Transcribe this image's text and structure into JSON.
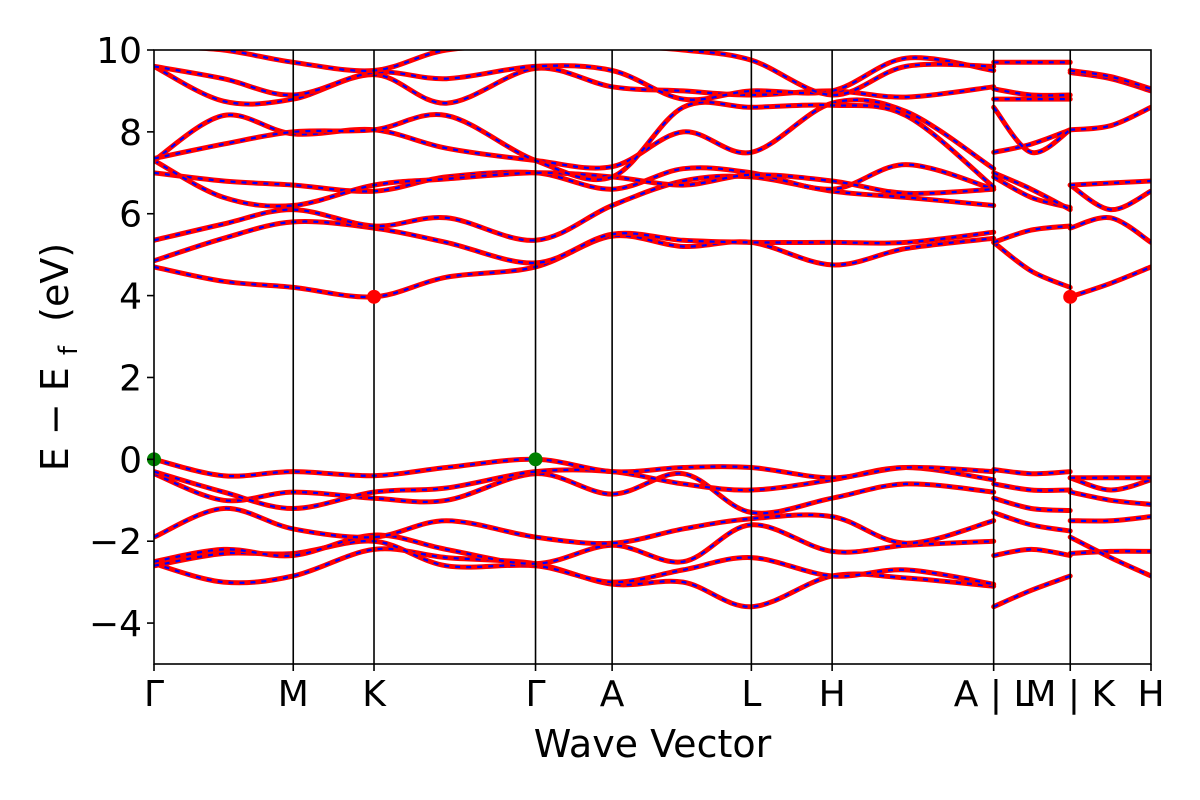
{
  "chart_data": {
    "type": "line",
    "title": "",
    "xlabel": "Wave Vector",
    "ylabel": "E − E",
    "ylabel_sub": "f",
    "ylabel_unit": "(eV)",
    "ylim": [
      -5,
      10
    ],
    "yticks": [
      {
        "value": 10,
        "label": "10"
      },
      {
        "value": 8,
        "label": "8"
      },
      {
        "value": 6,
        "label": "6"
      },
      {
        "value": 4,
        "label": "4"
      },
      {
        "value": 2,
        "label": "2"
      },
      {
        "value": 0,
        "label": "0"
      },
      {
        "value": -2,
        "label": "−2"
      },
      {
        "value": -4,
        "label": "−4"
      }
    ],
    "kpoints": [
      {
        "label": "Γ",
        "k": 0
      },
      {
        "label": "M",
        "k": 1.0
      },
      {
        "label": "K",
        "k": 1.58
      },
      {
        "label": "Γ",
        "k": 2.74
      },
      {
        "label": "A",
        "k": 3.29
      },
      {
        "label": "L",
        "k": 4.29
      },
      {
        "label": "H",
        "k": 4.87
      },
      {
        "label": "A | L",
        "k": 6.03
      },
      {
        "label": "M | K",
        "k": 6.58
      },
      {
        "label": "H",
        "k": 7.16
      }
    ],
    "k_max": 7.16,
    "series_colors": {
      "band": "#ff0000",
      "overlay": "#0000ff"
    },
    "markers": [
      {
        "name": "vbm",
        "k": 0,
        "E": 0.0,
        "color": "#008000"
      },
      {
        "name": "vbm",
        "k": 2.74,
        "E": 0.0,
        "color": "#008000"
      },
      {
        "name": "cbm",
        "k": 1.58,
        "E": 3.97,
        "color": "#ff0000"
      },
      {
        "name": "cbm",
        "k": 6.58,
        "E": 3.97,
        "color": "#ff0000"
      }
    ],
    "series": [
      {
        "segment": [
          0,
          6.03
        ],
        "k": [
          0,
          0.5,
          1.0,
          1.58,
          2.1,
          2.74,
          3.29,
          3.8,
          4.29,
          4.87,
          5.4,
          6.03
        ],
        "E": [
          -2.55,
          -3.0,
          -2.85,
          -2.2,
          -2.4,
          -2.55,
          -3.05,
          -3.0,
          -3.6,
          -2.85,
          -2.9,
          -3.1
        ]
      },
      {
        "segment": [
          0,
          6.03
        ],
        "k": [
          0,
          0.5,
          1.0,
          1.58,
          2.1,
          2.74,
          3.29,
          3.8,
          4.29,
          4.87,
          5.4,
          6.03
        ],
        "E": [
          -2.6,
          -2.3,
          -2.3,
          -2.0,
          -2.6,
          -2.6,
          -3.0,
          -2.7,
          -2.4,
          -2.85,
          -2.7,
          -3.05
        ]
      },
      {
        "segment": [
          0,
          6.03
        ],
        "k": [
          0,
          0.5,
          1.0,
          1.58,
          2.1,
          2.74,
          3.29,
          3.8,
          4.29,
          4.87,
          5.4,
          6.03
        ],
        "E": [
          -2.5,
          -2.2,
          -2.35,
          -1.85,
          -2.2,
          -2.55,
          -2.1,
          -2.5,
          -1.6,
          -2.25,
          -2.1,
          -2.0
        ]
      },
      {
        "segment": [
          0,
          6.03
        ],
        "k": [
          0,
          0.5,
          1.0,
          1.58,
          2.1,
          2.74,
          3.29,
          3.8,
          4.29,
          4.87,
          5.4,
          6.03
        ],
        "E": [
          -1.9,
          -1.2,
          -1.7,
          -1.9,
          -1.5,
          -1.9,
          -2.05,
          -1.7,
          -1.45,
          -1.4,
          -2.05,
          -1.5
        ]
      },
      {
        "segment": [
          0,
          6.03
        ],
        "k": [
          0,
          0.5,
          1.0,
          1.58,
          2.1,
          2.74,
          3.29,
          3.8,
          4.29,
          4.87,
          5.4,
          6.03
        ],
        "E": [
          -0.35,
          -1.0,
          -0.8,
          -0.95,
          -1.0,
          -0.35,
          -0.85,
          -0.35,
          -1.3,
          -0.95,
          -0.6,
          -0.8
        ]
      },
      {
        "segment": [
          0,
          6.03
        ],
        "k": [
          0,
          0.5,
          1.0,
          1.58,
          2.1,
          2.74,
          3.29,
          3.8,
          4.29,
          4.87,
          5.4,
          6.03
        ],
        "E": [
          -0.3,
          -0.8,
          -1.2,
          -0.8,
          -0.7,
          -0.3,
          -0.3,
          -0.6,
          -0.75,
          -0.5,
          -0.2,
          -0.5
        ]
      },
      {
        "segment": [
          0,
          6.03
        ],
        "k": [
          0,
          0.5,
          1.0,
          1.58,
          2.1,
          2.74,
          3.29,
          3.8,
          4.29,
          4.87,
          5.4,
          6.03
        ],
        "E": [
          0.0,
          -0.4,
          -0.3,
          -0.4,
          -0.2,
          0.0,
          -0.3,
          -0.2,
          -0.2,
          -0.45,
          -0.2,
          -0.3
        ]
      },
      {
        "segment": [
          0,
          6.03
        ],
        "k": [
          0,
          0.5,
          1.0,
          1.58,
          2.1,
          2.74,
          3.29,
          3.8,
          4.29,
          4.87,
          5.4,
          6.03
        ],
        "E": [
          4.7,
          4.35,
          4.2,
          3.97,
          4.45,
          4.7,
          5.45,
          5.2,
          5.3,
          4.75,
          5.15,
          5.4
        ]
      },
      {
        "segment": [
          0,
          6.03
        ],
        "k": [
          0,
          0.5,
          1.0,
          1.58,
          2.1,
          2.74,
          3.29,
          3.8,
          4.29,
          4.87,
          5.4,
          6.03
        ],
        "E": [
          4.85,
          5.4,
          5.8,
          5.65,
          5.3,
          4.8,
          5.5,
          5.35,
          5.3,
          5.3,
          5.3,
          5.55
        ]
      },
      {
        "segment": [
          0,
          6.03
        ],
        "k": [
          0,
          0.5,
          1.0,
          1.58,
          2.1,
          2.74,
          3.29,
          3.8,
          4.29,
          4.87,
          5.4,
          6.03
        ],
        "E": [
          5.35,
          5.75,
          6.1,
          5.7,
          5.9,
          5.35,
          6.2,
          6.8,
          6.9,
          6.55,
          6.4,
          6.2
        ]
      },
      {
        "segment": [
          0,
          6.03
        ],
        "k": [
          0,
          0.5,
          1.0,
          1.58,
          2.1,
          2.74,
          3.29,
          3.8,
          4.29,
          4.87,
          5.4,
          6.03
        ],
        "E": [
          7.0,
          6.8,
          6.7,
          6.55,
          6.9,
          7.0,
          6.6,
          7.1,
          7.0,
          6.6,
          7.2,
          6.6
        ]
      },
      {
        "segment": [
          0,
          6.03
        ],
        "k": [
          0,
          0.5,
          1.0,
          1.58,
          2.1,
          2.74,
          3.29,
          3.8,
          4.29,
          4.87,
          5.4,
          6.03
        ],
        "E": [
          7.3,
          6.4,
          6.2,
          6.7,
          6.85,
          7.0,
          6.9,
          6.7,
          6.95,
          6.8,
          6.5,
          6.6
        ]
      },
      {
        "segment": [
          0,
          6.03
        ],
        "k": [
          0,
          0.5,
          1.0,
          1.58,
          2.1,
          2.74,
          3.29,
          3.8,
          4.29,
          4.87,
          5.4,
          6.03
        ],
        "E": [
          7.3,
          8.4,
          7.95,
          8.05,
          7.6,
          7.3,
          7.15,
          8.0,
          7.5,
          8.7,
          8.5,
          7.1
        ]
      },
      {
        "segment": [
          0,
          6.03
        ],
        "k": [
          0,
          0.5,
          1.0,
          1.58,
          2.1,
          2.74,
          3.29,
          3.8,
          4.29,
          4.87,
          5.4,
          6.03
        ],
        "E": [
          7.35,
          7.7,
          8.0,
          8.05,
          8.4,
          7.3,
          6.9,
          8.6,
          8.6,
          8.65,
          8.4,
          6.65
        ]
      },
      {
        "segment": [
          0,
          6.03
        ],
        "k": [
          0,
          0.5,
          1.0,
          1.58,
          2.1,
          2.74,
          3.29,
          3.8,
          4.29,
          4.87,
          5.4,
          6.03
        ],
        "E": [
          9.6,
          8.75,
          8.8,
          9.4,
          8.7,
          9.55,
          9.1,
          9.0,
          8.9,
          9.0,
          8.85,
          9.1
        ]
      },
      {
        "segment": [
          0,
          6.03
        ],
        "k": [
          0,
          0.5,
          1.0,
          1.58,
          2.1,
          2.74,
          3.29,
          3.8,
          4.29,
          4.87,
          5.4,
          6.03
        ],
        "E": [
          9.6,
          9.3,
          8.9,
          9.45,
          9.3,
          9.6,
          9.5,
          8.8,
          9.0,
          9.0,
          9.8,
          9.5
        ]
      },
      {
        "segment": [
          0,
          6.03
        ],
        "k": [
          0,
          0.5,
          1.0,
          1.58,
          2.1,
          2.74,
          3.29,
          3.8,
          4.29,
          4.87,
          5.4,
          6.03
        ],
        "E": [
          10.1,
          10.0,
          9.7,
          9.5,
          10.0,
          10.1,
          10.1,
          10.0,
          9.75,
          8.9,
          9.6,
          9.6
        ]
      },
      {
        "segment": [
          6.03,
          6.58
        ],
        "k": [
          6.03,
          6.3,
          6.58
        ],
        "E": [
          -3.6,
          -3.2,
          -2.85
        ]
      },
      {
        "segment": [
          6.03,
          6.58
        ],
        "k": [
          6.03,
          6.3,
          6.58
        ],
        "E": [
          -2.35,
          -2.2,
          -2.35
        ]
      },
      {
        "segment": [
          6.03,
          6.58
        ],
        "k": [
          6.03,
          6.3,
          6.58
        ],
        "E": [
          -1.3,
          -1.6,
          -1.75
        ]
      },
      {
        "segment": [
          6.03,
          6.58
        ],
        "k": [
          6.03,
          6.3,
          6.58
        ],
        "E": [
          -0.95,
          -1.2,
          -1.25
        ]
      },
      {
        "segment": [
          6.03,
          6.58
        ],
        "k": [
          6.03,
          6.3,
          6.58
        ],
        "E": [
          -0.6,
          -0.75,
          -0.75
        ]
      },
      {
        "segment": [
          6.03,
          6.58
        ],
        "k": [
          6.03,
          6.3,
          6.58
        ],
        "E": [
          -0.25,
          -0.35,
          -0.3
        ]
      },
      {
        "segment": [
          6.03,
          6.58
        ],
        "k": [
          6.03,
          6.3,
          6.58
        ],
        "E": [
          5.3,
          4.6,
          4.2
        ]
      },
      {
        "segment": [
          6.03,
          6.58
        ],
        "k": [
          6.03,
          6.3,
          6.58
        ],
        "E": [
          5.3,
          5.6,
          5.7
        ]
      },
      {
        "segment": [
          6.03,
          6.58
        ],
        "k": [
          6.03,
          6.3,
          6.58
        ],
        "E": [
          6.9,
          6.4,
          6.15
        ]
      },
      {
        "segment": [
          6.03,
          6.58
        ],
        "k": [
          6.03,
          6.3,
          6.58
        ],
        "E": [
          7.0,
          6.6,
          6.1
        ]
      },
      {
        "segment": [
          6.03,
          6.58
        ],
        "k": [
          6.03,
          6.3,
          6.58
        ],
        "E": [
          7.5,
          7.7,
          8.05
        ]
      },
      {
        "segment": [
          6.03,
          6.58
        ],
        "k": [
          6.03,
          6.3,
          6.58
        ],
        "E": [
          8.6,
          7.5,
          8.05
        ]
      },
      {
        "segment": [
          6.03,
          6.58
        ],
        "k": [
          6.03,
          6.3,
          6.58
        ],
        "E": [
          8.8,
          8.8,
          8.8
        ]
      },
      {
        "segment": [
          6.03,
          6.58
        ],
        "k": [
          6.03,
          6.3,
          6.58
        ],
        "E": [
          9.05,
          8.9,
          8.9
        ]
      },
      {
        "segment": [
          6.03,
          6.58
        ],
        "k": [
          6.03,
          6.3,
          6.58
        ],
        "E": [
          9.7,
          9.7,
          9.7
        ]
      },
      {
        "segment": [
          6.58,
          7.16
        ],
        "k": [
          6.58,
          6.87,
          7.16
        ],
        "E": [
          -2.3,
          -2.25,
          -2.25
        ]
      },
      {
        "segment": [
          6.58,
          7.16
        ],
        "k": [
          6.58,
          6.87,
          7.16
        ],
        "E": [
          -1.9,
          -2.4,
          -2.85
        ]
      },
      {
        "segment": [
          6.58,
          7.16
        ],
        "k": [
          6.58,
          6.87,
          7.16
        ],
        "E": [
          -1.5,
          -1.5,
          -1.4
        ]
      },
      {
        "segment": [
          6.58,
          7.16
        ],
        "k": [
          6.58,
          6.87,
          7.16
        ],
        "E": [
          -0.8,
          -1.0,
          -1.1
        ]
      },
      {
        "segment": [
          6.58,
          7.16
        ],
        "k": [
          6.58,
          6.87,
          7.16
        ],
        "E": [
          -0.45,
          -0.75,
          -0.5
        ]
      },
      {
        "segment": [
          6.58,
          7.16
        ],
        "k": [
          6.58,
          6.87,
          7.16
        ],
        "E": [
          -0.45,
          -0.45,
          -0.45
        ]
      },
      {
        "segment": [
          6.58,
          7.16
        ],
        "k": [
          6.58,
          6.87,
          7.16
        ],
        "E": [
          3.97,
          4.3,
          4.7
        ]
      },
      {
        "segment": [
          6.58,
          7.16
        ],
        "k": [
          6.58,
          6.87,
          7.16
        ],
        "E": [
          5.65,
          5.9,
          5.3
        ]
      },
      {
        "segment": [
          6.58,
          7.16
        ],
        "k": [
          6.58,
          6.87,
          7.16
        ],
        "E": [
          6.7,
          6.1,
          6.55
        ]
      },
      {
        "segment": [
          6.58,
          7.16
        ],
        "k": [
          6.58,
          6.87,
          7.16
        ],
        "E": [
          6.7,
          6.75,
          6.8
        ]
      },
      {
        "segment": [
          6.58,
          7.16
        ],
        "k": [
          6.58,
          6.87,
          7.16
        ],
        "E": [
          8.05,
          8.15,
          8.6
        ]
      },
      {
        "segment": [
          6.58,
          7.16
        ],
        "k": [
          6.58,
          6.87,
          7.16
        ],
        "E": [
          9.45,
          9.3,
          9.0
        ]
      },
      {
        "segment": [
          6.58,
          7.16
        ],
        "k": [
          6.58,
          6.87,
          7.16
        ],
        "E": [
          9.5,
          9.35,
          9.05
        ]
      }
    ]
  }
}
